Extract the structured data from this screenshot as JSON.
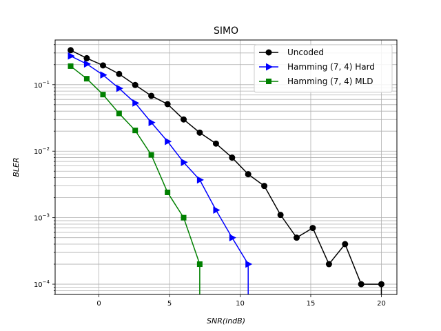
{
  "chart_data": {
    "type": "line",
    "title": "SIMO",
    "xlabel": "SNR(indB)",
    "ylabel": "BLER",
    "xlim": [
      -3.1,
      21.1
    ],
    "ylim": [
      7e-05,
      0.47
    ],
    "yscale": "log",
    "grid": "on",
    "legend_position": "top-right",
    "xticks": [
      0,
      5,
      10,
      15,
      20
    ],
    "series": [
      {
        "name": "Uncoded",
        "color": "#000000",
        "marker": "circle",
        "x": [
          -2,
          -0.86,
          0.29,
          1.43,
          2.57,
          3.71,
          4.86,
          6.0,
          7.14,
          8.29,
          9.43,
          10.57,
          11.71,
          12.86,
          14.0,
          15.14,
          16.29,
          17.43,
          18.57,
          20.0
        ],
        "y": [
          0.33,
          0.25,
          0.195,
          0.145,
          0.099,
          0.068,
          0.051,
          0.03,
          0.019,
          0.013,
          0.008,
          0.0045,
          0.003,
          0.0011,
          0.0005,
          0.0007,
          0.0002,
          0.0004,
          0.0001,
          0.0001
        ]
      },
      {
        "name": "Hamming (7, 4) Hard",
        "color": "#0000ff",
        "marker": "triangle-right",
        "x": [
          -2,
          -0.86,
          0.29,
          1.43,
          2.57,
          3.71,
          4.86,
          6.0,
          7.14,
          8.29,
          9.43,
          10.57
        ],
        "y": [
          0.27,
          0.205,
          0.14,
          0.088,
          0.053,
          0.027,
          0.014,
          0.0068,
          0.0037,
          0.0013,
          0.0005,
          0.0002
        ]
      },
      {
        "name": "Hamming (7, 4) MLD",
        "color": "#008000",
        "marker": "square",
        "x": [
          -2,
          -0.86,
          0.29,
          1.43,
          2.57,
          3.71,
          4.86,
          6.0,
          7.14
        ],
        "y": [
          0.19,
          0.123,
          0.071,
          0.037,
          0.0205,
          0.0088,
          0.0024,
          0.001,
          0.0002
        ]
      }
    ]
  }
}
